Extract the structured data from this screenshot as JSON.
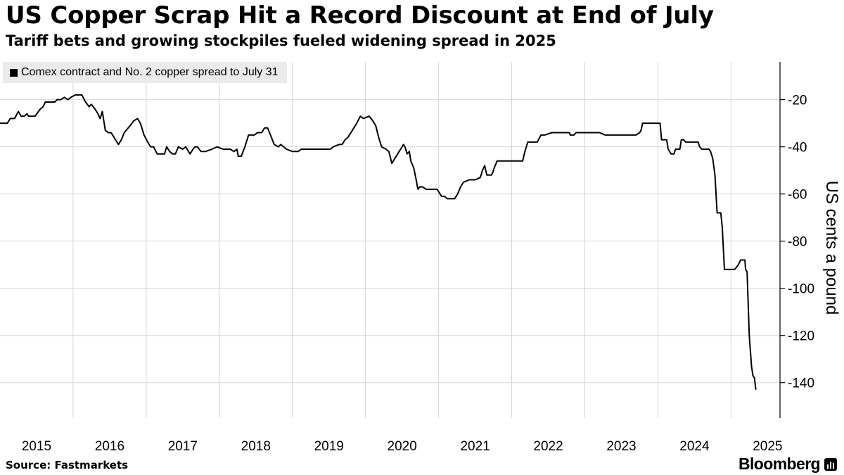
{
  "header": {
    "title": "US Copper Scrap Hit a Record Discount at End of July",
    "subtitle": "Tariff bets and growing stockpiles fueled widening spread in 2025"
  },
  "legend": {
    "label": "Comex contract and No. 2 copper spread to July 31"
  },
  "footer": {
    "source": "Source: Fastmarkets",
    "brand": "Bloomberg"
  },
  "colors": {
    "line": "#000000",
    "grid": "#d6d6d6",
    "legend_bg": "#ebebeb"
  },
  "chart_data": {
    "type": "line",
    "title": "US Copper Scrap Hit a Record Discount at End of July",
    "subtitle": "Tariff bets and growing stockpiles fueled widening spread in 2025",
    "ylabel": "US cents a pound",
    "xlabel": "",
    "grid": true,
    "y_axis_side": "right",
    "legend_position": "top-left",
    "xlim": [
      2015.0,
      2025.67
    ],
    "ylim": [
      -155,
      -4
    ],
    "yticks": [
      -20,
      -40,
      -60,
      -80,
      -100,
      -120,
      -140
    ],
    "x_ticks": [
      {
        "value": 2015,
        "label": "2015"
      },
      {
        "value": 2016,
        "label": "2016"
      },
      {
        "value": 2017,
        "label": "2017"
      },
      {
        "value": 2018,
        "label": "2018"
      },
      {
        "value": 2019,
        "label": "2019"
      },
      {
        "value": 2020,
        "label": "2020"
      },
      {
        "value": 2021,
        "label": "2021"
      },
      {
        "value": 2022,
        "label": "2022"
      },
      {
        "value": 2023,
        "label": "2023"
      },
      {
        "value": 2024,
        "label": "2024"
      },
      {
        "value": 2025,
        "label": "2025"
      }
    ],
    "series": [
      {
        "name": "Comex contract and No. 2 copper spread to July 31",
        "points": [
          [
            2015.0,
            -30
          ],
          [
            2015.1,
            -30
          ],
          [
            2015.14,
            -28
          ],
          [
            2015.2,
            -28
          ],
          [
            2015.25,
            -25
          ],
          [
            2015.29,
            -27
          ],
          [
            2015.33,
            -27
          ],
          [
            2015.37,
            -26
          ],
          [
            2015.39,
            -27
          ],
          [
            2015.48,
            -27
          ],
          [
            2015.55,
            -24
          ],
          [
            2015.59,
            -23
          ],
          [
            2015.62,
            -21
          ],
          [
            2015.75,
            -21
          ],
          [
            2015.78,
            -20
          ],
          [
            2015.83,
            -20
          ],
          [
            2015.88,
            -19
          ],
          [
            2015.93,
            -20
          ],
          [
            2015.97,
            -19
          ],
          [
            2016.03,
            -18
          ],
          [
            2016.12,
            -18
          ],
          [
            2016.17,
            -21
          ],
          [
            2016.22,
            -23
          ],
          [
            2016.25,
            -22
          ],
          [
            2016.3,
            -24
          ],
          [
            2016.34,
            -26
          ],
          [
            2016.37,
            -28
          ],
          [
            2016.4,
            -25
          ],
          [
            2016.44,
            -33
          ],
          [
            2016.48,
            -34
          ],
          [
            2016.52,
            -34
          ],
          [
            2016.58,
            -37
          ],
          [
            2016.62,
            -39
          ],
          [
            2016.66,
            -37
          ],
          [
            2016.7,
            -34
          ],
          [
            2016.78,
            -31
          ],
          [
            2016.83,
            -29
          ],
          [
            2016.88,
            -28
          ],
          [
            2016.92,
            -30
          ],
          [
            2016.97,
            -35
          ],
          [
            2017.02,
            -38
          ],
          [
            2017.06,
            -40
          ],
          [
            2017.1,
            -40
          ],
          [
            2017.15,
            -43
          ],
          [
            2017.25,
            -43
          ],
          [
            2017.28,
            -40
          ],
          [
            2017.32,
            -42
          ],
          [
            2017.36,
            -43
          ],
          [
            2017.4,
            -43
          ],
          [
            2017.44,
            -40
          ],
          [
            2017.5,
            -41
          ],
          [
            2017.54,
            -40
          ],
          [
            2017.6,
            -43
          ],
          [
            2017.64,
            -41
          ],
          [
            2017.67,
            -40
          ],
          [
            2017.7,
            -40
          ],
          [
            2017.75,
            -42
          ],
          [
            2017.81,
            -42
          ],
          [
            2017.9,
            -41
          ],
          [
            2017.97,
            -40
          ],
          [
            2018.05,
            -41
          ],
          [
            2018.15,
            -41
          ],
          [
            2018.2,
            -42
          ],
          [
            2018.24,
            -41
          ],
          [
            2018.26,
            -44
          ],
          [
            2018.3,
            -44
          ],
          [
            2018.35,
            -40
          ],
          [
            2018.4,
            -35
          ],
          [
            2018.48,
            -35
          ],
          [
            2018.52,
            -34
          ],
          [
            2018.58,
            -34
          ],
          [
            2018.62,
            -32
          ],
          [
            2018.66,
            -32
          ],
          [
            2018.7,
            -35
          ],
          [
            2018.75,
            -39
          ],
          [
            2018.81,
            -40
          ],
          [
            2018.84,
            -39
          ],
          [
            2018.88,
            -40
          ],
          [
            2018.92,
            -41
          ],
          [
            2019.0,
            -42
          ],
          [
            2019.08,
            -42
          ],
          [
            2019.12,
            -41
          ],
          [
            2019.4,
            -41
          ],
          [
            2019.52,
            -41
          ],
          [
            2019.56,
            -40
          ],
          [
            2019.64,
            -39
          ],
          [
            2019.68,
            -39
          ],
          [
            2019.72,
            -37
          ],
          [
            2019.76,
            -36
          ],
          [
            2019.8,
            -34
          ],
          [
            2019.84,
            -32
          ],
          [
            2019.88,
            -30
          ],
          [
            2019.93,
            -27
          ],
          [
            2019.97,
            -28
          ],
          [
            2020.05,
            -27
          ],
          [
            2020.1,
            -29
          ],
          [
            2020.14,
            -31
          ],
          [
            2020.18,
            -36
          ],
          [
            2020.22,
            -40
          ],
          [
            2020.28,
            -41
          ],
          [
            2020.32,
            -42
          ],
          [
            2020.36,
            -47
          ],
          [
            2020.4,
            -45
          ],
          [
            2020.44,
            -43
          ],
          [
            2020.48,
            -41
          ],
          [
            2020.52,
            -39
          ],
          [
            2020.54,
            -40
          ],
          [
            2020.57,
            -43
          ],
          [
            2020.6,
            -42
          ],
          [
            2020.62,
            -46
          ],
          [
            2020.66,
            -49
          ],
          [
            2020.7,
            -55
          ],
          [
            2020.71,
            -57
          ],
          [
            2020.72,
            -58
          ],
          [
            2020.74,
            -57
          ],
          [
            2020.78,
            -57
          ],
          [
            2020.83,
            -58
          ],
          [
            2020.92,
            -58
          ],
          [
            2020.98,
            -58
          ],
          [
            2021.02,
            -60
          ],
          [
            2021.04,
            -61
          ],
          [
            2021.08,
            -61
          ],
          [
            2021.12,
            -62
          ],
          [
            2021.22,
            -62
          ],
          [
            2021.26,
            -60
          ],
          [
            2021.3,
            -57
          ],
          [
            2021.34,
            -55
          ],
          [
            2021.42,
            -54
          ],
          [
            2021.5,
            -54
          ],
          [
            2021.57,
            -53
          ],
          [
            2021.6,
            -50
          ],
          [
            2021.63,
            -48
          ],
          [
            2021.66,
            -52
          ],
          [
            2021.72,
            -52
          ],
          [
            2021.74,
            -51
          ],
          [
            2021.76,
            -49
          ],
          [
            2021.8,
            -46
          ],
          [
            2021.86,
            -46
          ],
          [
            2022.05,
            -46
          ],
          [
            2022.15,
            -46
          ],
          [
            2022.18,
            -42
          ],
          [
            2022.22,
            -38
          ],
          [
            2022.35,
            -38
          ],
          [
            2022.4,
            -35
          ],
          [
            2022.45,
            -35
          ],
          [
            2022.55,
            -34
          ],
          [
            2022.6,
            -34
          ],
          [
            2022.7,
            -34
          ],
          [
            2022.79,
            -34
          ],
          [
            2022.8,
            -35
          ],
          [
            2022.85,
            -35
          ],
          [
            2022.88,
            -34
          ],
          [
            2022.95,
            -34
          ],
          [
            2023.0,
            -34
          ],
          [
            2023.12,
            -34
          ],
          [
            2023.15,
            -34
          ],
          [
            2023.2,
            -34
          ],
          [
            2023.28,
            -35
          ],
          [
            2023.4,
            -35
          ],
          [
            2023.6,
            -35
          ],
          [
            2023.7,
            -35
          ],
          [
            2023.75,
            -34
          ],
          [
            2023.77,
            -33
          ],
          [
            2023.79,
            -30
          ],
          [
            2024.0,
            -30
          ],
          [
            2024.03,
            -30
          ],
          [
            2024.05,
            -37
          ],
          [
            2024.12,
            -37
          ],
          [
            2024.14,
            -41
          ],
          [
            2024.18,
            -43
          ],
          [
            2024.22,
            -43
          ],
          [
            2024.24,
            -41
          ],
          [
            2024.3,
            -41
          ],
          [
            2024.32,
            -37
          ],
          [
            2024.35,
            -37
          ],
          [
            2024.38,
            -38
          ],
          [
            2024.55,
            -38
          ],
          [
            2024.57,
            -40
          ],
          [
            2024.6,
            -41
          ],
          [
            2024.7,
            -41
          ],
          [
            2024.72,
            -42
          ],
          [
            2024.75,
            -45
          ],
          [
            2024.78,
            -52
          ],
          [
            2024.81,
            -68
          ],
          [
            2024.86,
            -68
          ],
          [
            2024.88,
            -74
          ],
          [
            2024.91,
            -92
          ],
          [
            2024.95,
            -92
          ],
          [
            2025.05,
            -92
          ],
          [
            2025.1,
            -90
          ],
          [
            2025.13,
            -88
          ],
          [
            2025.19,
            -88
          ],
          [
            2025.2,
            -92
          ],
          [
            2025.22,
            -93
          ],
          [
            2025.25,
            -120
          ],
          [
            2025.28,
            -133
          ],
          [
            2025.3,
            -137
          ],
          [
            2025.32,
            -138
          ],
          [
            2025.34,
            -143
          ]
        ]
      }
    ]
  }
}
